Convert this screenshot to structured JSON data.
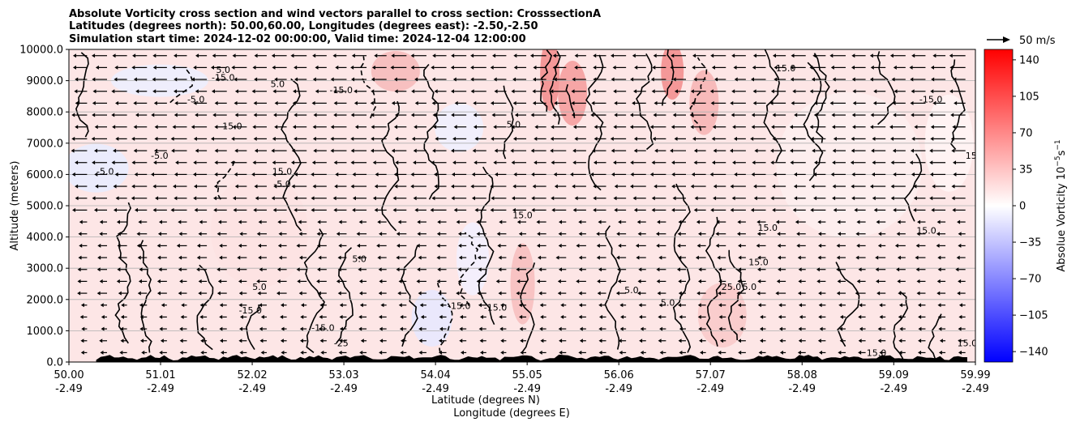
{
  "chart_data": {
    "type": "heatmap",
    "title_lines": [
      "Absolute Vorticity cross section and wind vectors parallel to cross section: CrosssectionA",
      "Latitudes (degrees north): 50.00,60.00, Longitudes (degrees east): -2.50,-2.50",
      "Simulation start time: 2024-12-02 00:00:00, Valid time: 2024-12-04 12:00:00"
    ],
    "ylabel": "Altitude (meters)",
    "xlabel_lines": [
      "Latitude (degrees N)",
      "Longitude (degrees E)"
    ],
    "ylim": [
      0,
      10000
    ],
    "xlim": [
      50.0,
      59.99
    ],
    "y_ticks": [
      "0.0",
      "1000.0",
      "2000.0",
      "3000.0",
      "4000.0",
      "5000.0",
      "6000.0",
      "7000.0",
      "8000.0",
      "9000.0",
      "10000.0"
    ],
    "x_ticks": [
      {
        "lat": "50.00",
        "lon": "-2.49"
      },
      {
        "lat": "51.01",
        "lon": "-2.49"
      },
      {
        "lat": "52.02",
        "lon": "-2.49"
      },
      {
        "lat": "53.03",
        "lon": "-2.49"
      },
      {
        "lat": "54.04",
        "lon": "-2.49"
      },
      {
        "lat": "55.05",
        "lon": "-2.49"
      },
      {
        "lat": "56.06",
        "lon": "-2.49"
      },
      {
        "lat": "57.07",
        "lon": "-2.49"
      },
      {
        "lat": "58.08",
        "lon": "-2.49"
      },
      {
        "lat": "59.09",
        "lon": "-2.49"
      },
      {
        "lat": "59.99",
        "lon": "-2.49"
      }
    ],
    "grid": "horizontal",
    "colorbar": {
      "label": "Absolue Vorticity 10",
      "label_exponent": "−5",
      "label_units_suffix": "s",
      "label_units_exponent": "−1",
      "range": [
        -150,
        150
      ],
      "ticks": [
        "140",
        "105",
        "70",
        "35",
        "0",
        "−35",
        "−70",
        "−105",
        "−140"
      ],
      "colormap": "bwr",
      "color_low": "#0000ff",
      "color_mid": "#ffffff",
      "color_high": "#ff0000"
    },
    "quiver_key": {
      "label": "50 m/s",
      "speed": 50
    },
    "wind_direction": "southward (toward lower latitude) aloft, weak near surface",
    "contour_levels_labeled": [
      "5.0",
      "15.0",
      "25.0",
      "-5.0",
      "-15.0",
      "-25.0"
    ],
    "contour_label_samples": [
      {
        "text": "15.0",
        "lat": 51.8,
        "alt": 7450
      },
      {
        "text": "-15.0",
        "lat": 51.7,
        "alt": 9000
      },
      {
        "text": "-5.0",
        "lat": 51.4,
        "alt": 8300
      },
      {
        "text": "5.0",
        "lat": 51.7,
        "alt": 9250
      },
      {
        "text": "-5.0",
        "lat": 50.4,
        "alt": 6000
      },
      {
        "text": "-5.0",
        "lat": 51.0,
        "alt": 6500
      },
      {
        "text": "15.0",
        "lat": 52.35,
        "alt": 6000
      },
      {
        "text": "-5.0",
        "lat": 52.35,
        "alt": 5600
      },
      {
        "text": "5.0",
        "lat": 53.2,
        "alt": 3200
      },
      {
        "text": "5.0",
        "lat": 52.1,
        "alt": 2300
      },
      {
        "text": "-15.0",
        "lat": 52.0,
        "alt": 1550
      },
      {
        "text": "-15.0",
        "lat": 52.8,
        "alt": 1000
      },
      {
        "text": "-25",
        "lat": 53.0,
        "alt": 500
      },
      {
        "text": "-15.0",
        "lat": 54.3,
        "alt": 1700
      },
      {
        "text": "-15.0",
        "lat": 54.7,
        "alt": 1650
      },
      {
        "text": "15.0",
        "lat": 55.0,
        "alt": 4600
      },
      {
        "text": "15.0",
        "lat": 57.7,
        "alt": 4200
      },
      {
        "text": "15.0",
        "lat": 57.6,
        "alt": 3100
      },
      {
        "text": "15.0",
        "lat": 59.45,
        "alt": 4100
      },
      {
        "text": "5.0",
        "lat": 56.2,
        "alt": 2200
      },
      {
        "text": "5.0",
        "lat": 56.6,
        "alt": 1800
      },
      {
        "text": "25.0",
        "lat": 57.3,
        "alt": 2300
      },
      {
        "text": "5.0",
        "lat": 57.5,
        "alt": 2300
      },
      {
        "text": "15.0",
        "lat": 59.9,
        "alt": 500
      },
      {
        "text": "15.0",
        "lat": 58.9,
        "alt": 200
      },
      {
        "text": "15.0",
        "lat": 59.99,
        "alt": 6500
      },
      {
        "text": "-15.0",
        "lat": 59.5,
        "alt": 8300
      },
      {
        "text": "15.0",
        "lat": 57.9,
        "alt": 9300
      },
      {
        "text": "-15.0",
        "lat": 53.0,
        "alt": 8600
      },
      {
        "text": "5.0",
        "lat": 54.9,
        "alt": 7500
      },
      {
        "text": "5.0",
        "lat": 52.3,
        "alt": 8800
      }
    ]
  }
}
